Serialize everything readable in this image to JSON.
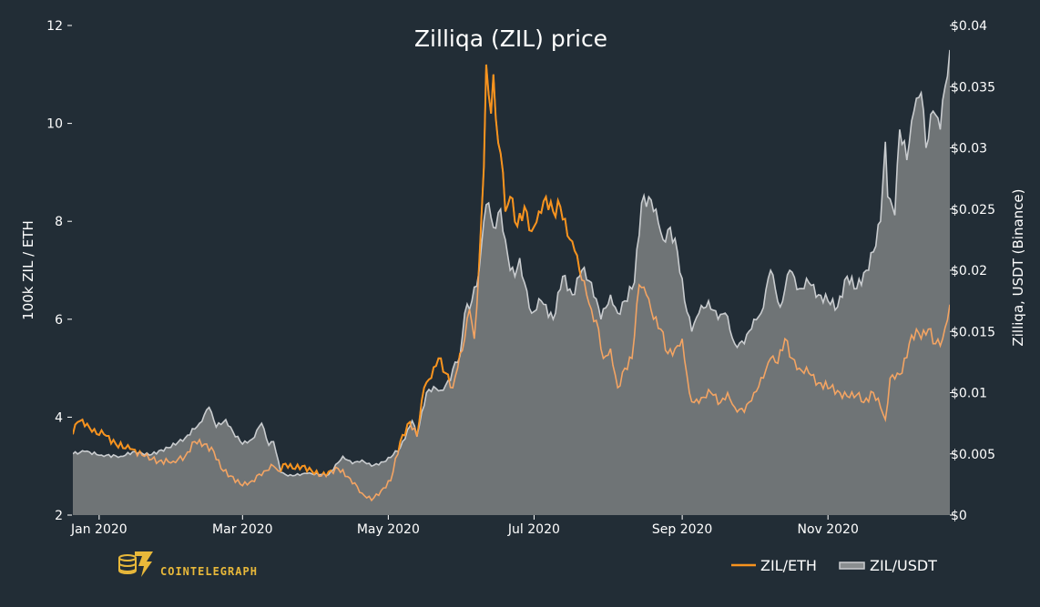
{
  "chart_data": {
    "type": "area",
    "title": "Zilliqa (ZIL) price",
    "ylabel_left": "100k ZIL / ETH",
    "ylabel_right": "Zilliqa, USDT (Binance)",
    "x_range": [
      "2019-12-21",
      "2020-12-22"
    ],
    "ylim_left": [
      2,
      12
    ],
    "ylim_right": [
      0,
      0.04
    ],
    "grid": false,
    "legend_position": "bottom-right",
    "x_ticks": [
      {
        "date": "2020-01-01",
        "label": "Jan 2020"
      },
      {
        "date": "2020-03-01",
        "label": "Mar 2020"
      },
      {
        "date": "2020-05-01",
        "label": "May 2020"
      },
      {
        "date": "2020-07-01",
        "label": "Jul 2020"
      },
      {
        "date": "2020-09-01",
        "label": "Sep 2020"
      },
      {
        "date": "2020-11-01",
        "label": "Nov 2020"
      }
    ],
    "y_ticks_left": [
      {
        "value": 2,
        "label": "2"
      },
      {
        "value": 4,
        "label": "4"
      },
      {
        "value": 6,
        "label": "6"
      },
      {
        "value": 8,
        "label": "8"
      },
      {
        "value": 10,
        "label": "10"
      },
      {
        "value": 12,
        "label": "12"
      }
    ],
    "y_ticks_right": [
      {
        "value": 0,
        "label": "$0"
      },
      {
        "value": 0.005,
        "label": "$0.005"
      },
      {
        "value": 0.01,
        "label": "$0.01"
      },
      {
        "value": 0.015,
        "label": "$0.015"
      },
      {
        "value": 0.02,
        "label": "$0.02"
      },
      {
        "value": 0.025,
        "label": "$0.025"
      },
      {
        "value": 0.03,
        "label": "$0.03"
      },
      {
        "value": 0.035,
        "label": "$0.035"
      },
      {
        "value": 0.04,
        "label": "$0.04"
      }
    ],
    "series": [
      {
        "name": "ZIL/USDT",
        "axis": "right",
        "style": "area",
        "color": "#c9cccf",
        "fill": "#6f7476",
        "points": [
          [
            "2019-12-21",
            0.005
          ],
          [
            "2019-12-26",
            0.0052
          ],
          [
            "2020-01-02",
            0.0049
          ],
          [
            "2020-01-10",
            0.0048
          ],
          [
            "2020-01-16",
            0.0052
          ],
          [
            "2020-01-22",
            0.0049
          ],
          [
            "2020-01-30",
            0.0055
          ],
          [
            "2020-02-06",
            0.0063
          ],
          [
            "2020-02-12",
            0.0075
          ],
          [
            "2020-02-16",
            0.0088
          ],
          [
            "2020-02-19",
            0.0072
          ],
          [
            "2020-02-23",
            0.0078
          ],
          [
            "2020-02-26",
            0.0068
          ],
          [
            "2020-03-01",
            0.0058
          ],
          [
            "2020-03-05",
            0.0062
          ],
          [
            "2020-03-09",
            0.0075
          ],
          [
            "2020-03-12",
            0.0057
          ],
          [
            "2020-03-14",
            0.006
          ],
          [
            "2020-03-17",
            0.0035
          ],
          [
            "2020-03-20",
            0.0032
          ],
          [
            "2020-03-28",
            0.0034
          ],
          [
            "2020-04-06",
            0.0033
          ],
          [
            "2020-04-12",
            0.0048
          ],
          [
            "2020-04-16",
            0.0042
          ],
          [
            "2020-04-20",
            0.0045
          ],
          [
            "2020-04-24",
            0.004
          ],
          [
            "2020-04-30",
            0.0044
          ],
          [
            "2020-05-06",
            0.0055
          ],
          [
            "2020-05-11",
            0.0077
          ],
          [
            "2020-05-13",
            0.0065
          ],
          [
            "2020-05-17",
            0.01
          ],
          [
            "2020-05-20",
            0.0105
          ],
          [
            "2020-05-23",
            0.0102
          ],
          [
            "2020-05-27",
            0.011
          ],
          [
            "2020-05-29",
            0.0125
          ],
          [
            "2020-05-31",
            0.013
          ],
          [
            "2020-06-02",
            0.0165
          ],
          [
            "2020-06-05",
            0.0175
          ],
          [
            "2020-06-08",
            0.02
          ],
          [
            "2020-06-10",
            0.024
          ],
          [
            "2020-06-12",
            0.0255
          ],
          [
            "2020-06-14",
            0.0235
          ],
          [
            "2020-06-17",
            0.025
          ],
          [
            "2020-06-19",
            0.0225
          ],
          [
            "2020-06-21",
            0.02
          ],
          [
            "2020-06-23",
            0.0195
          ],
          [
            "2020-06-25",
            0.021
          ],
          [
            "2020-06-27",
            0.019
          ],
          [
            "2020-06-30",
            0.0165
          ],
          [
            "2020-07-04",
            0.0175
          ],
          [
            "2020-07-09",
            0.016
          ],
          [
            "2020-07-13",
            0.0195
          ],
          [
            "2020-07-17",
            0.018
          ],
          [
            "2020-07-21",
            0.02
          ],
          [
            "2020-07-25",
            0.019
          ],
          [
            "2020-07-29",
            0.016
          ],
          [
            "2020-08-02",
            0.018
          ],
          [
            "2020-08-05",
            0.0165
          ],
          [
            "2020-08-08",
            0.0175
          ],
          [
            "2020-08-12",
            0.019
          ],
          [
            "2020-08-15",
            0.0255
          ],
          [
            "2020-08-18",
            0.026
          ],
          [
            "2020-08-21",
            0.025
          ],
          [
            "2020-08-24",
            0.0225
          ],
          [
            "2020-08-27",
            0.0235
          ],
          [
            "2020-08-30",
            0.0215
          ],
          [
            "2020-09-02",
            0.0175
          ],
          [
            "2020-09-05",
            0.015
          ],
          [
            "2020-09-08",
            0.0165
          ],
          [
            "2020-09-12",
            0.0175
          ],
          [
            "2020-09-16",
            0.016
          ],
          [
            "2020-09-19",
            0.0165
          ],
          [
            "2020-09-23",
            0.014
          ],
          [
            "2020-09-27",
            0.014
          ],
          [
            "2020-10-01",
            0.016
          ],
          [
            "2020-10-04",
            0.0165
          ],
          [
            "2020-10-08",
            0.02
          ],
          [
            "2020-10-12",
            0.017
          ],
          [
            "2020-10-16",
            0.02
          ],
          [
            "2020-10-20",
            0.0185
          ],
          [
            "2020-10-24",
            0.019
          ],
          [
            "2020-10-28",
            0.018
          ],
          [
            "2020-11-01",
            0.0175
          ],
          [
            "2020-11-05",
            0.017
          ],
          [
            "2020-11-09",
            0.0195
          ],
          [
            "2020-11-13",
            0.0185
          ],
          [
            "2020-11-17",
            0.02
          ],
          [
            "2020-11-20",
            0.0215
          ],
          [
            "2020-11-23",
            0.024
          ],
          [
            "2020-11-25",
            0.0305
          ],
          [
            "2020-11-26",
            0.026
          ],
          [
            "2020-11-29",
            0.0245
          ],
          [
            "2020-12-01",
            0.0315
          ],
          [
            "2020-12-04",
            0.029
          ],
          [
            "2020-12-07",
            0.033
          ],
          [
            "2020-12-10",
            0.0345
          ],
          [
            "2020-12-12",
            0.03
          ],
          [
            "2020-12-15",
            0.033
          ],
          [
            "2020-12-18",
            0.0315
          ],
          [
            "2020-12-20",
            0.035
          ],
          [
            "2020-12-22",
            0.038
          ]
        ]
      },
      {
        "name": "ZIL/ETH",
        "axis": "left",
        "style": "line",
        "color": "#f7931e",
        "color_light": "#f3a463",
        "points": [
          [
            "2019-12-21",
            3.65
          ],
          [
            "2019-12-23",
            3.9
          ],
          [
            "2019-12-25",
            3.95
          ],
          [
            "2019-12-29",
            3.7
          ],
          [
            "2020-01-03",
            3.65
          ],
          [
            "2020-01-08",
            3.45
          ],
          [
            "2020-01-14",
            3.35
          ],
          [
            "2020-01-20",
            3.2
          ],
          [
            "2020-01-26",
            3.1
          ],
          [
            "2020-02-01",
            3.1
          ],
          [
            "2020-02-06",
            3.2
          ],
          [
            "2020-02-10",
            3.5
          ],
          [
            "2020-02-14",
            3.45
          ],
          [
            "2020-02-18",
            3.3
          ],
          [
            "2020-02-21",
            2.95
          ],
          [
            "2020-02-25",
            2.8
          ],
          [
            "2020-03-01",
            2.6
          ],
          [
            "2020-03-05",
            2.7
          ],
          [
            "2020-03-10",
            2.9
          ],
          [
            "2020-03-14",
            3.0
          ],
          [
            "2020-03-16",
            2.9
          ],
          [
            "2020-03-19",
            3.05
          ],
          [
            "2020-03-22",
            2.95
          ],
          [
            "2020-03-26",
            3.0
          ],
          [
            "2020-04-03",
            2.8
          ],
          [
            "2020-04-10",
            2.95
          ],
          [
            "2020-04-15",
            2.75
          ],
          [
            "2020-04-20",
            2.45
          ],
          [
            "2020-04-24",
            2.3
          ],
          [
            "2020-04-28",
            2.5
          ],
          [
            "2020-05-02",
            2.7
          ],
          [
            "2020-05-06",
            3.5
          ],
          [
            "2020-05-10",
            3.9
          ],
          [
            "2020-05-13",
            3.6
          ],
          [
            "2020-05-16",
            4.6
          ],
          [
            "2020-05-19",
            4.8
          ],
          [
            "2020-05-22",
            5.2
          ],
          [
            "2020-05-25",
            4.9
          ],
          [
            "2020-05-28",
            4.6
          ],
          [
            "2020-05-30",
            5.0
          ],
          [
            "2020-06-02",
            5.6
          ],
          [
            "2020-06-04",
            6.2
          ],
          [
            "2020-06-06",
            5.6
          ],
          [
            "2020-06-08",
            7.1
          ],
          [
            "2020-06-10",
            9.1
          ],
          [
            "2020-06-11",
            11.2
          ],
          [
            "2020-06-13",
            10.2
          ],
          [
            "2020-06-14",
            11.0
          ],
          [
            "2020-06-16",
            9.6
          ],
          [
            "2020-06-18",
            9.0
          ],
          [
            "2020-06-19",
            8.2
          ],
          [
            "2020-06-21",
            8.5
          ],
          [
            "2020-06-24",
            7.9
          ],
          [
            "2020-06-27",
            8.3
          ],
          [
            "2020-06-30",
            7.8
          ],
          [
            "2020-07-03",
            8.2
          ],
          [
            "2020-07-06",
            8.5
          ],
          [
            "2020-07-09",
            8.2
          ],
          [
            "2020-07-12",
            8.3
          ],
          [
            "2020-07-15",
            7.7
          ],
          [
            "2020-07-18",
            7.4
          ],
          [
            "2020-07-21",
            6.8
          ],
          [
            "2020-07-23",
            6.5
          ],
          [
            "2020-07-25",
            6.2
          ],
          [
            "2020-07-28",
            5.8
          ],
          [
            "2020-07-30",
            5.2
          ],
          [
            "2020-08-02",
            5.4
          ],
          [
            "2020-08-05",
            4.6
          ],
          [
            "2020-08-08",
            5.0
          ],
          [
            "2020-08-11",
            5.2
          ],
          [
            "2020-08-14",
            6.7
          ],
          [
            "2020-08-17",
            6.5
          ],
          [
            "2020-08-20",
            6.0
          ],
          [
            "2020-08-23",
            5.8
          ],
          [
            "2020-08-26",
            5.3
          ],
          [
            "2020-08-29",
            5.4
          ],
          [
            "2020-09-01",
            5.6
          ],
          [
            "2020-09-04",
            4.5
          ],
          [
            "2020-09-06",
            4.3
          ],
          [
            "2020-09-09",
            4.4
          ],
          [
            "2020-09-13",
            4.5
          ],
          [
            "2020-09-17",
            4.3
          ],
          [
            "2020-09-20",
            4.5
          ],
          [
            "2020-09-23",
            4.2
          ],
          [
            "2020-09-27",
            4.1
          ],
          [
            "2020-10-01",
            4.5
          ],
          [
            "2020-10-05",
            4.8
          ],
          [
            "2020-10-08",
            5.2
          ],
          [
            "2020-10-11",
            5.1
          ],
          [
            "2020-10-14",
            5.6
          ],
          [
            "2020-10-17",
            5.2
          ],
          [
            "2020-10-20",
            5.0
          ],
          [
            "2020-10-24",
            4.9
          ],
          [
            "2020-10-28",
            4.7
          ],
          [
            "2020-11-02",
            4.6
          ],
          [
            "2020-11-06",
            4.5
          ],
          [
            "2020-11-10",
            4.4
          ],
          [
            "2020-11-14",
            4.5
          ],
          [
            "2020-11-16",
            4.3
          ],
          [
            "2020-11-20",
            4.5
          ],
          [
            "2020-11-23",
            4.2
          ],
          [
            "2020-11-25",
            3.95
          ],
          [
            "2020-11-27",
            4.8
          ],
          [
            "2020-11-30",
            4.9
          ],
          [
            "2020-12-02",
            4.9
          ],
          [
            "2020-12-05",
            5.5
          ],
          [
            "2020-12-08",
            5.8
          ],
          [
            "2020-12-10",
            5.6
          ],
          [
            "2020-12-13",
            5.8
          ],
          [
            "2020-12-16",
            5.5
          ],
          [
            "2020-12-19",
            5.6
          ],
          [
            "2020-12-22",
            6.3
          ]
        ]
      }
    ]
  },
  "legend": [
    {
      "label": "ZIL/ETH",
      "color": "#f7931e"
    },
    {
      "label": "ZIL/USDT",
      "color": "#c9cccf"
    }
  ],
  "brand": {
    "name": "COINTELEGRAPH",
    "icon": "cointelegraph-logo-icon",
    "color": "#e8b83a"
  }
}
